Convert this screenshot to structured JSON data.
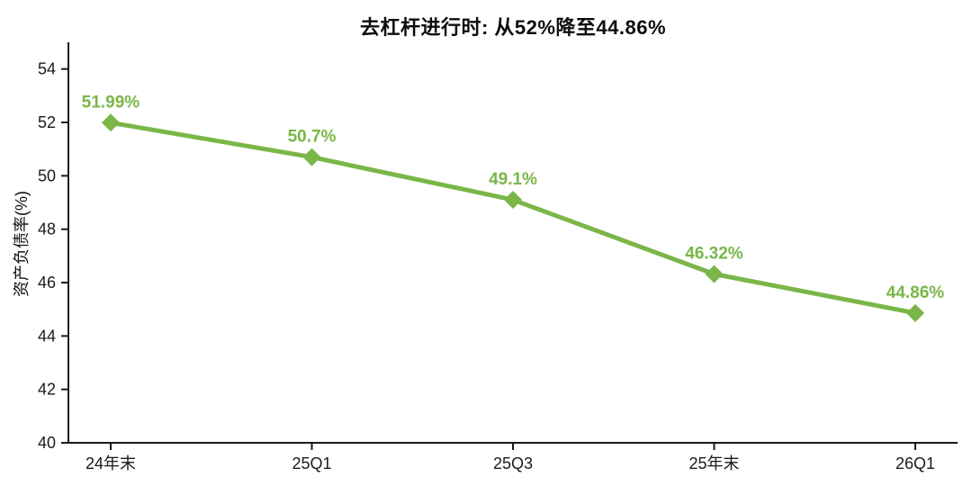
{
  "chart_data": {
    "type": "line",
    "title": "去杠杆进行时: 从52%降至44.86%",
    "ylabel": "资产负债率(%)",
    "xlabel": "",
    "categories": [
      "24年末",
      "25Q1",
      "25Q3",
      "25年末",
      "26Q1"
    ],
    "values": [
      51.99,
      50.7,
      49.1,
      46.32,
      44.86
    ],
    "data_labels": [
      "51.99%",
      "50.7%",
      "49.1%",
      "46.32%",
      "44.86%"
    ],
    "ylim": [
      40,
      55
    ],
    "yticks": [
      40,
      42,
      44,
      46,
      48,
      50,
      52,
      54
    ],
    "grid": false,
    "legend_position": "none",
    "marker": "diamond",
    "line_color": "#7ab648",
    "label_color": "#7ab648",
    "axis_color": "#1a1a1a",
    "title_color": "#0d0d0d",
    "background_color": "#ffffff"
  }
}
